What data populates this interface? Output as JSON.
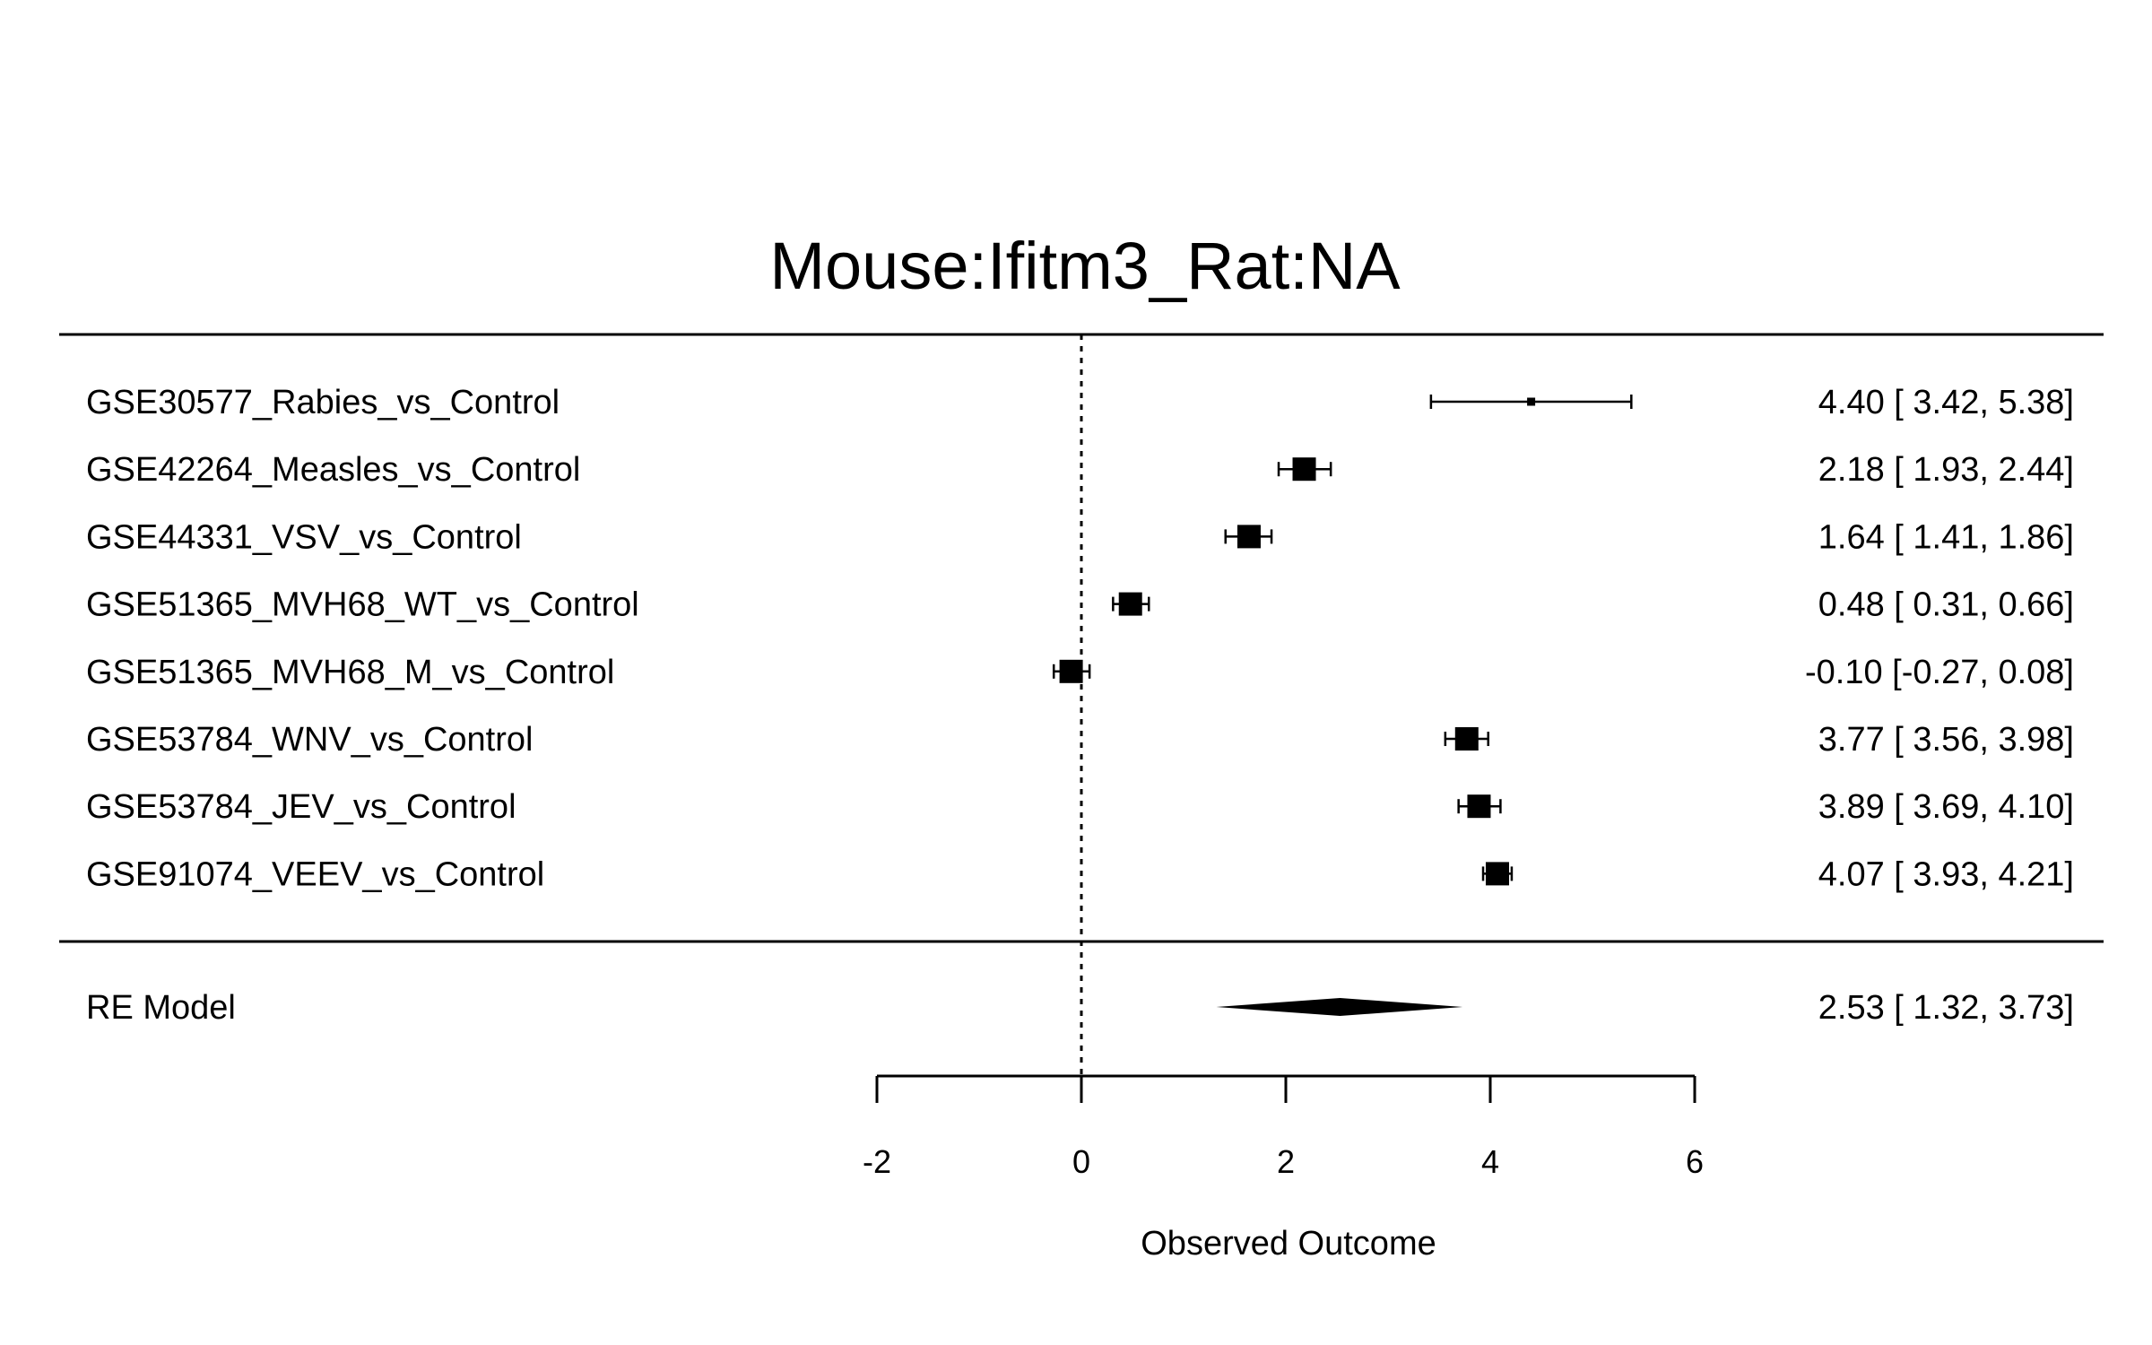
{
  "chart_data": {
    "type": "forest",
    "title": "Mouse:Ifitm3_Rat:NA",
    "xlabel": "Observed Outcome",
    "xlim": [
      -2,
      6
    ],
    "xticks": [
      -2,
      0,
      2,
      4,
      6
    ],
    "xtick_labels": [
      "-2",
      "0",
      "2",
      "4",
      "6"
    ],
    "reference_line": 0,
    "studies": [
      {
        "label": "GSE30577_Rabies_vs_Control",
        "estimate": 4.4,
        "lower": 3.42,
        "upper": 5.38,
        "text": "4.40 [ 3.42, 5.38]",
        "weight": 0.15
      },
      {
        "label": "GSE42264_Measles_vs_Control",
        "estimate": 2.18,
        "lower": 1.93,
        "upper": 2.44,
        "text": "2.18 [ 1.93, 2.44]",
        "weight": 1.0
      },
      {
        "label": "GSE44331_VSV_vs_Control",
        "estimate": 1.64,
        "lower": 1.41,
        "upper": 1.86,
        "text": "1.64 [ 1.41, 1.86]",
        "weight": 1.0
      },
      {
        "label": "GSE51365_MVH68_WT_vs_Control",
        "estimate": 0.48,
        "lower": 0.31,
        "upper": 0.66,
        "text": "0.48 [ 0.31, 0.66]",
        "weight": 1.0
      },
      {
        "label": "GSE51365_MVH68_M_vs_Control",
        "estimate": -0.1,
        "lower": -0.27,
        "upper": 0.08,
        "text": "-0.10 [-0.27, 0.08]",
        "weight": 1.0
      },
      {
        "label": "GSE53784_WNV_vs_Control",
        "estimate": 3.77,
        "lower": 3.56,
        "upper": 3.98,
        "text": "3.77 [ 3.56, 3.98]",
        "weight": 1.0
      },
      {
        "label": "GSE53784_JEV_vs_Control",
        "estimate": 3.89,
        "lower": 3.69,
        "upper": 4.1,
        "text": "3.89 [ 3.69, 4.10]",
        "weight": 1.0
      },
      {
        "label": "GSE91074_VEEV_vs_Control",
        "estimate": 4.07,
        "lower": 3.93,
        "upper": 4.21,
        "text": "4.07 [ 3.93, 4.21]",
        "weight": 1.0
      }
    ],
    "summary": {
      "label": "RE Model",
      "estimate": 2.53,
      "lower": 1.32,
      "upper": 3.73,
      "text": "2.53 [ 1.32, 3.73]"
    }
  }
}
